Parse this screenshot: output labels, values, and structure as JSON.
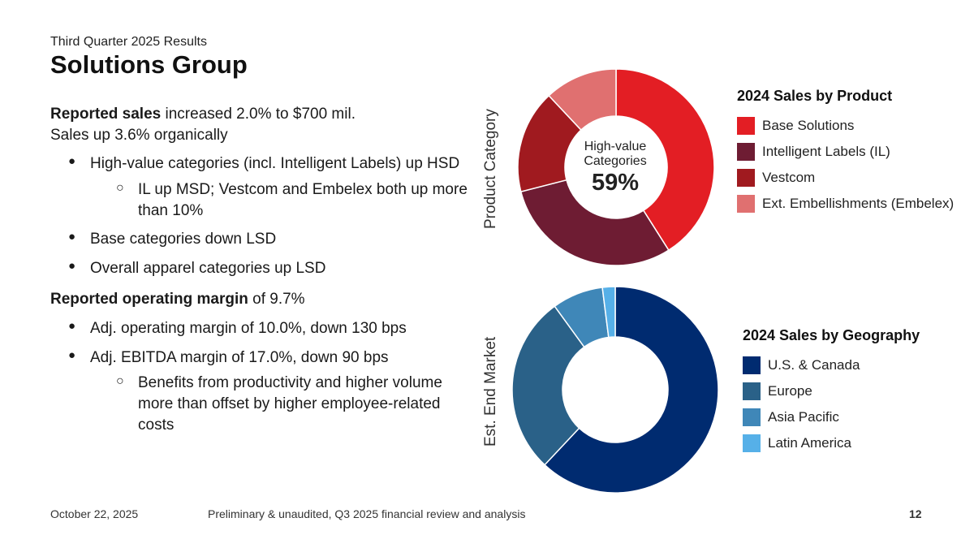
{
  "header": {
    "subtitle": "Third Quarter 2025 Results",
    "title": "Solutions Group"
  },
  "body": {
    "p1_bold": "Reported sales",
    "p1_rest": " increased 2.0% to $700 mil.",
    "p2": "Sales up 3.6% organically",
    "bullets1": [
      {
        "level": 1,
        "text": "High-value categories (incl. Intelligent Labels) up HSD"
      },
      {
        "level": 2,
        "text": "IL up MSD; Vestcom and Embelex both up more than 10%"
      },
      {
        "level": 1,
        "text": "Base categories down LSD"
      },
      {
        "level": 1,
        "text": "Overall apparel categories up LSD"
      }
    ],
    "p3_bold": "Reported operating margin",
    "p3_rest": " of 9.7%",
    "bullets2": [
      {
        "level": 1,
        "text": "Adj. operating margin of 10.0%, down 130 bps"
      },
      {
        "level": 1,
        "text": "Adj. EBITDA margin of 17.0%, down 90 bps"
      },
      {
        "level": 2,
        "text": "Benefits from productivity and higher volume more than offset by higher employee-related costs"
      }
    ],
    "bullet_marker_l1": "●",
    "bullet_marker_l2": "○"
  },
  "chart_data": [
    {
      "type": "pie",
      "style": "donut",
      "title": "2024 Sales by Product",
      "axis_label": "Product Category",
      "center_text": "High-value Categories",
      "center_value": "59%",
      "categories": [
        "Base Solutions",
        "Intelligent Labels (IL)",
        "Vestcom",
        "Ext. Embellishments (Embelex)"
      ],
      "values": [
        41,
        30,
        17,
        12
      ],
      "colors": [
        "#e31e24",
        "#6e1c33",
        "#a01a1f",
        "#e07070"
      ],
      "legend_position": "right"
    },
    {
      "type": "pie",
      "style": "donut",
      "title": "2024 Sales by Geography",
      "axis_label": "Est. End Market",
      "categories": [
        "U.S. & Canada",
        "Europe",
        "Asia Pacific",
        "Latin America"
      ],
      "values": [
        62,
        28,
        8,
        2
      ],
      "colors": [
        "#002b70",
        "#2a6188",
        "#3f87b8",
        "#56b0e8"
      ],
      "legend_position": "right"
    }
  ],
  "footer": {
    "date": "October 22, 2025",
    "note": "Preliminary & unaudited, Q3 2025 financial review and analysis",
    "page": "12"
  }
}
